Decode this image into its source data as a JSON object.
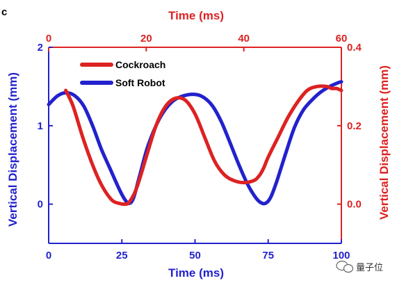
{
  "chart_data": {
    "type": "line",
    "panel_letter": "c",
    "title": "",
    "bottom_axis": {
      "label": "Time (ms)",
      "lim": [
        0,
        100
      ],
      "ticks": [
        0,
        25,
        50,
        75,
        100
      ],
      "tick_labels": [
        "0",
        "25",
        "50",
        "75",
        "100"
      ],
      "color": "#2222cc"
    },
    "top_axis": {
      "label": "Time (ms)",
      "lim": [
        0,
        60
      ],
      "ticks": [
        0,
        20,
        40,
        60
      ],
      "tick_labels": [
        "0",
        "20",
        "40",
        "60"
      ],
      "color": "#dd2222"
    },
    "left_axis": {
      "label": "Vertical Displacement (mm)",
      "lim": [
        -0.5,
        2
      ],
      "ticks": [
        0,
        1,
        2
      ],
      "tick_labels": [
        "0",
        "1",
        "2"
      ],
      "color": "#2222cc"
    },
    "right_axis": {
      "label": "Vertical Displacement (mm)",
      "lim": [
        -0.1,
        0.4
      ],
      "ticks": [
        0,
        0.2,
        0.4
      ],
      "tick_labels": [
        "0.0",
        "0.2",
        "0.4"
      ],
      "color": "#dd2222"
    },
    "grid": false,
    "legend_position": "top-left",
    "series": [
      {
        "name": "Cockroach",
        "color": "#dd2222",
        "x_axis": "top",
        "y_axis": "right",
        "x": [
          3.5,
          5,
          7,
          9,
          11,
          13,
          14.5,
          15.5,
          16.5,
          18,
          20,
          22,
          24,
          26,
          28,
          30,
          32,
          34,
          36,
          38,
          40,
          42,
          43,
          44,
          45,
          47,
          49,
          51,
          53,
          55,
          57,
          58,
          59,
          60
        ],
        "y": [
          0.29,
          0.25,
          0.17,
          0.1,
          0.045,
          0.01,
          0.002,
          0.0,
          0.005,
          0.04,
          0.12,
          0.2,
          0.25,
          0.27,
          0.265,
          0.23,
          0.17,
          0.11,
          0.075,
          0.06,
          0.055,
          0.06,
          0.07,
          0.09,
          0.12,
          0.17,
          0.22,
          0.26,
          0.29,
          0.3,
          0.3,
          0.295,
          0.295,
          0.29
        ]
      },
      {
        "name": "Soft Robot",
        "color": "#2222cc",
        "x_axis": "bottom",
        "y_axis": "left",
        "x": [
          0,
          3,
          6,
          9,
          12,
          15,
          18,
          21,
          24,
          26,
          27.5,
          29,
          31,
          34,
          38,
          42,
          46,
          50,
          53,
          56,
          59,
          62,
          65,
          68,
          71,
          73,
          74.5,
          76,
          78,
          81,
          84,
          87,
          90,
          93,
          96,
          99,
          100
        ],
        "y": [
          1.27,
          1.38,
          1.42,
          1.38,
          1.25,
          1.0,
          0.7,
          0.45,
          0.2,
          0.06,
          0.01,
          0.08,
          0.35,
          0.75,
          1.1,
          1.3,
          1.38,
          1.4,
          1.36,
          1.25,
          1.05,
          0.78,
          0.5,
          0.25,
          0.07,
          0.01,
          0.02,
          0.1,
          0.3,
          0.65,
          0.98,
          1.2,
          1.33,
          1.43,
          1.5,
          1.55,
          1.56
        ]
      }
    ]
  },
  "watermark": {
    "text": "量子位",
    "icon": "wechat-icon"
  }
}
